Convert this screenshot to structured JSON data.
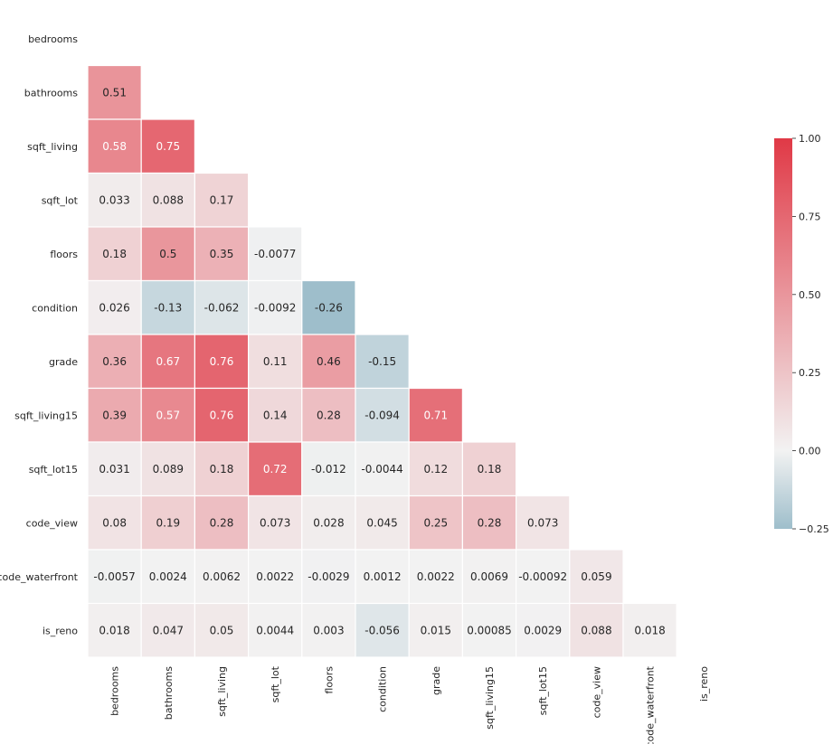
{
  "chart_data": {
    "type": "heatmap",
    "title": "",
    "mask": "upper-triangle-including-diagonal",
    "row_labels": [
      "bedrooms",
      "bathrooms",
      "sqft_living",
      "sqft_lot",
      "floors",
      "condition",
      "grade",
      "sqft_living15",
      "sqft_lot15",
      "code_view",
      "code_waterfront",
      "is_reno"
    ],
    "col_labels": [
      "bedrooms",
      "bathrooms",
      "sqft_living",
      "sqft_lot",
      "floors",
      "condition",
      "grade",
      "sqft_living15",
      "sqft_lot15",
      "code_view",
      "code_waterfront",
      "is_reno"
    ],
    "values": [
      [],
      [
        0.51
      ],
      [
        0.58,
        0.75
      ],
      [
        0.033,
        0.088,
        0.17
      ],
      [
        0.18,
        0.5,
        0.35,
        -0.0077
      ],
      [
        0.026,
        -0.13,
        -0.062,
        -0.0092,
        -0.26
      ],
      [
        0.36,
        0.67,
        0.76,
        0.11,
        0.46,
        -0.15
      ],
      [
        0.39,
        0.57,
        0.76,
        0.14,
        0.28,
        -0.094,
        0.71
      ],
      [
        0.031,
        0.089,
        0.18,
        0.72,
        -0.012,
        -0.0044,
        0.12,
        0.18
      ],
      [
        0.08,
        0.19,
        0.28,
        0.073,
        0.028,
        0.045,
        0.25,
        0.28,
        0.073
      ],
      [
        -0.0057,
        0.0024,
        0.0062,
        0.0022,
        -0.0029,
        0.0012,
        0.0022,
        0.0069,
        -0.00092,
        0.059
      ],
      [
        0.018,
        0.047,
        0.05,
        0.0044,
        0.003,
        -0.056,
        0.015,
        0.00085,
        0.0029,
        0.088,
        0.018
      ]
    ],
    "value_labels": [
      [],
      [
        "0.51"
      ],
      [
        "0.58",
        "0.75"
      ],
      [
        "0.033",
        "0.088",
        "0.17"
      ],
      [
        "0.18",
        "0.5",
        "0.35",
        "-0.0077"
      ],
      [
        "0.026",
        "-0.13",
        "-0.062",
        "-0.0092",
        "-0.26"
      ],
      [
        "0.36",
        "0.67",
        "0.76",
        "0.11",
        "0.46",
        "-0.15"
      ],
      [
        "0.39",
        "0.57",
        "0.76",
        "0.14",
        "0.28",
        "-0.094",
        "0.71"
      ],
      [
        "0.031",
        "0.089",
        "0.18",
        "0.72",
        "-0.012",
        "-0.0044",
        "0.12",
        "0.18"
      ],
      [
        "0.08",
        "0.19",
        "0.28",
        "0.073",
        "0.028",
        "0.045",
        "0.25",
        "0.28",
        "0.073"
      ],
      [
        "-0.0057",
        "0.0024",
        "0.0062",
        "0.0022",
        "-0.0029",
        "0.0012",
        "0.0022",
        "0.0069",
        "-0.00092",
        "0.059"
      ],
      [
        "0.018",
        "0.047",
        "0.05",
        "0.0044",
        "0.003",
        "-0.056",
        "0.015",
        "0.00085",
        "0.0029",
        "0.088",
        "0.018"
      ]
    ],
    "colorbar": {
      "vmin": -0.25,
      "vmax": 1.0,
      "center": 0,
      "ticks": [
        -0.25,
        0.0,
        0.25,
        0.5,
        0.75,
        1.0
      ],
      "tick_labels": [
        "−0.25",
        "0.00",
        "0.25",
        "0.50",
        "0.75",
        "1.00"
      ],
      "placement": "right"
    },
    "colors": {
      "negative": "#9ebecb",
      "center": "#f2f2f2",
      "positive": "#e03946",
      "grid": "#ffffff",
      "dark_text": "#262626",
      "light_text": "#ffffff"
    }
  }
}
